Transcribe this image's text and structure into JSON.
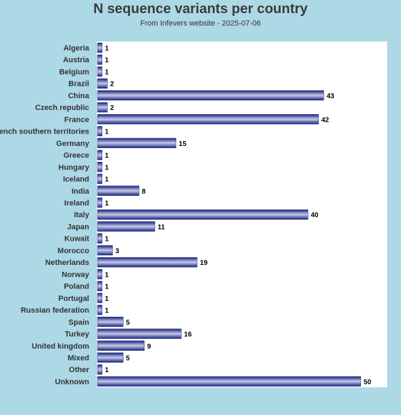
{
  "chart_data": {
    "type": "bar",
    "orientation": "horizontal",
    "title": "N sequence variants per country",
    "subtitle": "From Infevers website - 2025-07-06",
    "xlabel": "",
    "ylabel": "",
    "xlim": [
      0,
      55
    ],
    "grid": false,
    "colors": {
      "background": "#add8e6",
      "plot_background": "#ffffff",
      "bar_dark": "#1a237e",
      "bar_light": "#c5cae9"
    },
    "categories": [
      "Algeria",
      "Austria",
      "Belgium",
      "Brazil",
      "China",
      "Czech republic",
      "France",
      "French southern territories",
      "Germany",
      "Greece",
      "Hungary",
      "Iceland",
      "India",
      "Ireland",
      "Italy",
      "Japan",
      "Kuwait",
      "Morocco",
      "Netherlands",
      "Norway",
      "Poland",
      "Portugal",
      "Russian federation",
      "Spain",
      "Turkey",
      "United kingdom",
      "Mixed",
      "Other",
      "Unknown"
    ],
    "values": [
      1,
      1,
      1,
      2,
      43,
      2,
      42,
      1,
      15,
      1,
      1,
      1,
      8,
      1,
      40,
      11,
      1,
      3,
      19,
      1,
      1,
      1,
      1,
      5,
      16,
      9,
      5,
      1,
      50
    ]
  }
}
